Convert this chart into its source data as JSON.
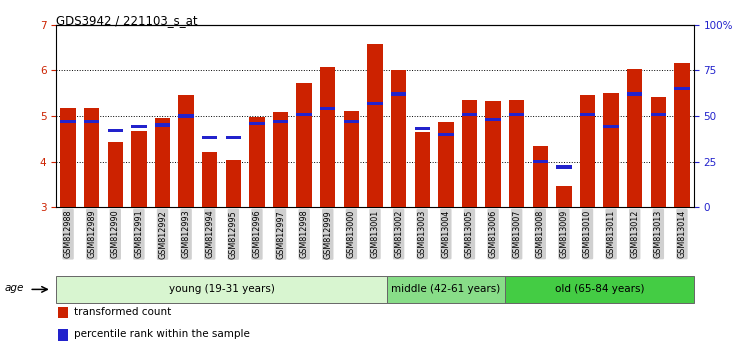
{
  "title": "GDS3942 / 221103_s_at",
  "samples": [
    "GSM812988",
    "GSM812989",
    "GSM812990",
    "GSM812991",
    "GSM812992",
    "GSM812993",
    "GSM812994",
    "GSM812995",
    "GSM812996",
    "GSM812997",
    "GSM812998",
    "GSM812999",
    "GSM813000",
    "GSM813001",
    "GSM813002",
    "GSM813003",
    "GSM813004",
    "GSM813005",
    "GSM813006",
    "GSM813007",
    "GSM813008",
    "GSM813009",
    "GSM813010",
    "GSM813011",
    "GSM813012",
    "GSM813013",
    "GSM813014"
  ],
  "transformed_counts": [
    5.17,
    5.17,
    4.43,
    4.67,
    4.95,
    5.45,
    4.21,
    4.03,
    4.98,
    5.08,
    5.72,
    6.07,
    5.1,
    6.57,
    6.0,
    4.65,
    4.87,
    5.35,
    5.32,
    5.35,
    4.33,
    3.46,
    5.47,
    5.5,
    6.02,
    5.42,
    6.16
  ],
  "percentile_ranks": [
    47,
    47,
    42,
    44,
    45,
    50,
    38,
    38,
    46,
    47,
    51,
    54,
    47,
    57,
    62,
    43,
    40,
    51,
    48,
    51,
    25,
    22,
    51,
    44,
    62,
    51,
    65
  ],
  "groups": [
    {
      "label": "young (19-31 years)",
      "start": 0,
      "end": 14,
      "color": "#d8f5d0"
    },
    {
      "label": "middle (42-61 years)",
      "start": 14,
      "end": 19,
      "color": "#88dd88"
    },
    {
      "label": "old (65-84 years)",
      "start": 19,
      "end": 27,
      "color": "#44cc44"
    }
  ],
  "ylim_left": [
    3,
    7
  ],
  "ylim_right": [
    0,
    100
  ],
  "yticks_left": [
    3,
    4,
    5,
    6,
    7
  ],
  "yticks_right": [
    0,
    25,
    50,
    75,
    100
  ],
  "ytick_labels_right": [
    "0",
    "25",
    "50",
    "75",
    "100%"
  ],
  "bar_color": "#cc2200",
  "percentile_color": "#2222cc",
  "bar_width": 0.65,
  "legend_items": [
    {
      "label": "transformed count",
      "color": "#cc2200"
    },
    {
      "label": "percentile rank within the sample",
      "color": "#2222cc"
    }
  ],
  "left_yaxis_color": "#cc2200",
  "right_yaxis_color": "#2222cc",
  "background_color": "#ffffff",
  "tick_bg_color": "#d0d0d0"
}
